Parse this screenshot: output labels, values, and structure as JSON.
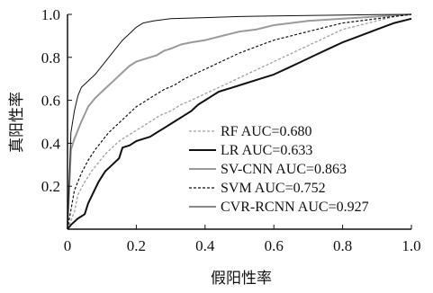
{
  "chart_data": {
    "type": "line",
    "xlabel": "假阳性率",
    "ylabel": "真阳性率",
    "xlim": [
      0,
      1
    ],
    "ylim": [
      0,
      1
    ],
    "x_ticks": [
      "0",
      "0.2",
      "0.4",
      "0.6",
      "0.8",
      "1.0"
    ],
    "y_ticks": [
      "0.2",
      "0.4",
      "0.6",
      "0.8",
      "1.0"
    ],
    "grid": false,
    "legend_position": "bottom-right",
    "series": [
      {
        "name": "RF AUC=0.680",
        "color": "#a0a0a0",
        "dash": "3,2",
        "width": 1.3,
        "points": [
          [
            0,
            0
          ],
          [
            0.02,
            0.08
          ],
          [
            0.03,
            0.16
          ],
          [
            0.05,
            0.22
          ],
          [
            0.07,
            0.27
          ],
          [
            0.09,
            0.31
          ],
          [
            0.11,
            0.35
          ],
          [
            0.13,
            0.38
          ],
          [
            0.15,
            0.41
          ],
          [
            0.17,
            0.43
          ],
          [
            0.19,
            0.45
          ],
          [
            0.21,
            0.47
          ],
          [
            0.24,
            0.5
          ],
          [
            0.27,
            0.53
          ],
          [
            0.3,
            0.55
          ],
          [
            0.33,
            0.58
          ],
          [
            0.36,
            0.6
          ],
          [
            0.4,
            0.63
          ],
          [
            0.44,
            0.66
          ],
          [
            0.48,
            0.69
          ],
          [
            0.52,
            0.72
          ],
          [
            0.56,
            0.75
          ],
          [
            0.6,
            0.78
          ],
          [
            0.64,
            0.81
          ],
          [
            0.68,
            0.84
          ],
          [
            0.72,
            0.87
          ],
          [
            0.76,
            0.9
          ],
          [
            0.8,
            0.93
          ],
          [
            0.85,
            0.95
          ],
          [
            0.9,
            0.97
          ],
          [
            0.95,
            0.99
          ],
          [
            1.0,
            1.0
          ]
        ]
      },
      {
        "name": "LR AUC=0.633",
        "color": "#111111",
        "dash": "",
        "width": 2,
        "points": [
          [
            0,
            0
          ],
          [
            0.01,
            0.02
          ],
          [
            0.03,
            0.05
          ],
          [
            0.05,
            0.07
          ],
          [
            0.06,
            0.12
          ],
          [
            0.09,
            0.22
          ],
          [
            0.11,
            0.27
          ],
          [
            0.13,
            0.3
          ],
          [
            0.15,
            0.33
          ],
          [
            0.16,
            0.38
          ],
          [
            0.18,
            0.39
          ],
          [
            0.2,
            0.41
          ],
          [
            0.22,
            0.42
          ],
          [
            0.24,
            0.43
          ],
          [
            0.26,
            0.45
          ],
          [
            0.28,
            0.47
          ],
          [
            0.3,
            0.49
          ],
          [
            0.32,
            0.51
          ],
          [
            0.34,
            0.53
          ],
          [
            0.36,
            0.55
          ],
          [
            0.38,
            0.58
          ],
          [
            0.4,
            0.6
          ],
          [
            0.42,
            0.62
          ],
          [
            0.44,
            0.64
          ],
          [
            0.48,
            0.66
          ],
          [
            0.52,
            0.68
          ],
          [
            0.56,
            0.7
          ],
          [
            0.6,
            0.72
          ],
          [
            0.64,
            0.75
          ],
          [
            0.68,
            0.78
          ],
          [
            0.72,
            0.81
          ],
          [
            0.76,
            0.84
          ],
          [
            0.8,
            0.87
          ],
          [
            0.85,
            0.9
          ],
          [
            0.9,
            0.93
          ],
          [
            0.95,
            0.96
          ],
          [
            1.0,
            0.98
          ]
        ]
      },
      {
        "name": "SV-CNN AUC=0.863",
        "color": "#9a9a9a",
        "dash": "",
        "width": 2,
        "points": [
          [
            0,
            0
          ],
          [
            0.01,
            0.37
          ],
          [
            0.02,
            0.42
          ],
          [
            0.04,
            0.5
          ],
          [
            0.06,
            0.57
          ],
          [
            0.08,
            0.61
          ],
          [
            0.1,
            0.64
          ],
          [
            0.12,
            0.67
          ],
          [
            0.14,
            0.7
          ],
          [
            0.16,
            0.73
          ],
          [
            0.18,
            0.76
          ],
          [
            0.2,
            0.78
          ],
          [
            0.22,
            0.79
          ],
          [
            0.24,
            0.8
          ],
          [
            0.26,
            0.81
          ],
          [
            0.28,
            0.83
          ],
          [
            0.3,
            0.84
          ],
          [
            0.33,
            0.86
          ],
          [
            0.36,
            0.87
          ],
          [
            0.4,
            0.88
          ],
          [
            0.45,
            0.9
          ],
          [
            0.5,
            0.92
          ],
          [
            0.55,
            0.93
          ],
          [
            0.6,
            0.95
          ],
          [
            0.65,
            0.96
          ],
          [
            0.7,
            0.97
          ],
          [
            0.8,
            0.98
          ],
          [
            0.9,
            0.99
          ],
          [
            1.0,
            1.0
          ]
        ]
      },
      {
        "name": "SVM AUC=0.752",
        "color": "#111111",
        "dash": "3,2",
        "width": 1.2,
        "points": [
          [
            0,
            0
          ],
          [
            0.02,
            0.18
          ],
          [
            0.04,
            0.26
          ],
          [
            0.06,
            0.32
          ],
          [
            0.08,
            0.37
          ],
          [
            0.1,
            0.41
          ],
          [
            0.12,
            0.45
          ],
          [
            0.14,
            0.48
          ],
          [
            0.16,
            0.51
          ],
          [
            0.18,
            0.54
          ],
          [
            0.2,
            0.57
          ],
          [
            0.22,
            0.59
          ],
          [
            0.25,
            0.62
          ],
          [
            0.28,
            0.65
          ],
          [
            0.31,
            0.67
          ],
          [
            0.34,
            0.7
          ],
          [
            0.38,
            0.73
          ],
          [
            0.42,
            0.76
          ],
          [
            0.46,
            0.79
          ],
          [
            0.5,
            0.82
          ],
          [
            0.55,
            0.85
          ],
          [
            0.6,
            0.88
          ],
          [
            0.65,
            0.9
          ],
          [
            0.7,
            0.92
          ],
          [
            0.75,
            0.94
          ],
          [
            0.8,
            0.96
          ],
          [
            0.85,
            0.97
          ],
          [
            0.9,
            0.98
          ],
          [
            1.0,
            1.0
          ]
        ]
      },
      {
        "name": "CVR-RCNN AUC=0.927",
        "color": "#111111",
        "dash": "",
        "width": 1,
        "points": [
          [
            0,
            0
          ],
          [
            0.01,
            0.45
          ],
          [
            0.02,
            0.55
          ],
          [
            0.03,
            0.62
          ],
          [
            0.04,
            0.66
          ],
          [
            0.06,
            0.69
          ],
          [
            0.08,
            0.72
          ],
          [
            0.1,
            0.76
          ],
          [
            0.12,
            0.8
          ],
          [
            0.14,
            0.84
          ],
          [
            0.16,
            0.88
          ],
          [
            0.18,
            0.91
          ],
          [
            0.2,
            0.94
          ],
          [
            0.22,
            0.96
          ],
          [
            0.25,
            0.97
          ],
          [
            0.3,
            0.98
          ],
          [
            0.4,
            0.985
          ],
          [
            0.5,
            0.99
          ],
          [
            0.6,
            0.993
          ],
          [
            0.7,
            0.995
          ],
          [
            0.8,
            0.997
          ],
          [
            0.9,
            0.999
          ],
          [
            1.0,
            1.0
          ]
        ]
      }
    ]
  }
}
